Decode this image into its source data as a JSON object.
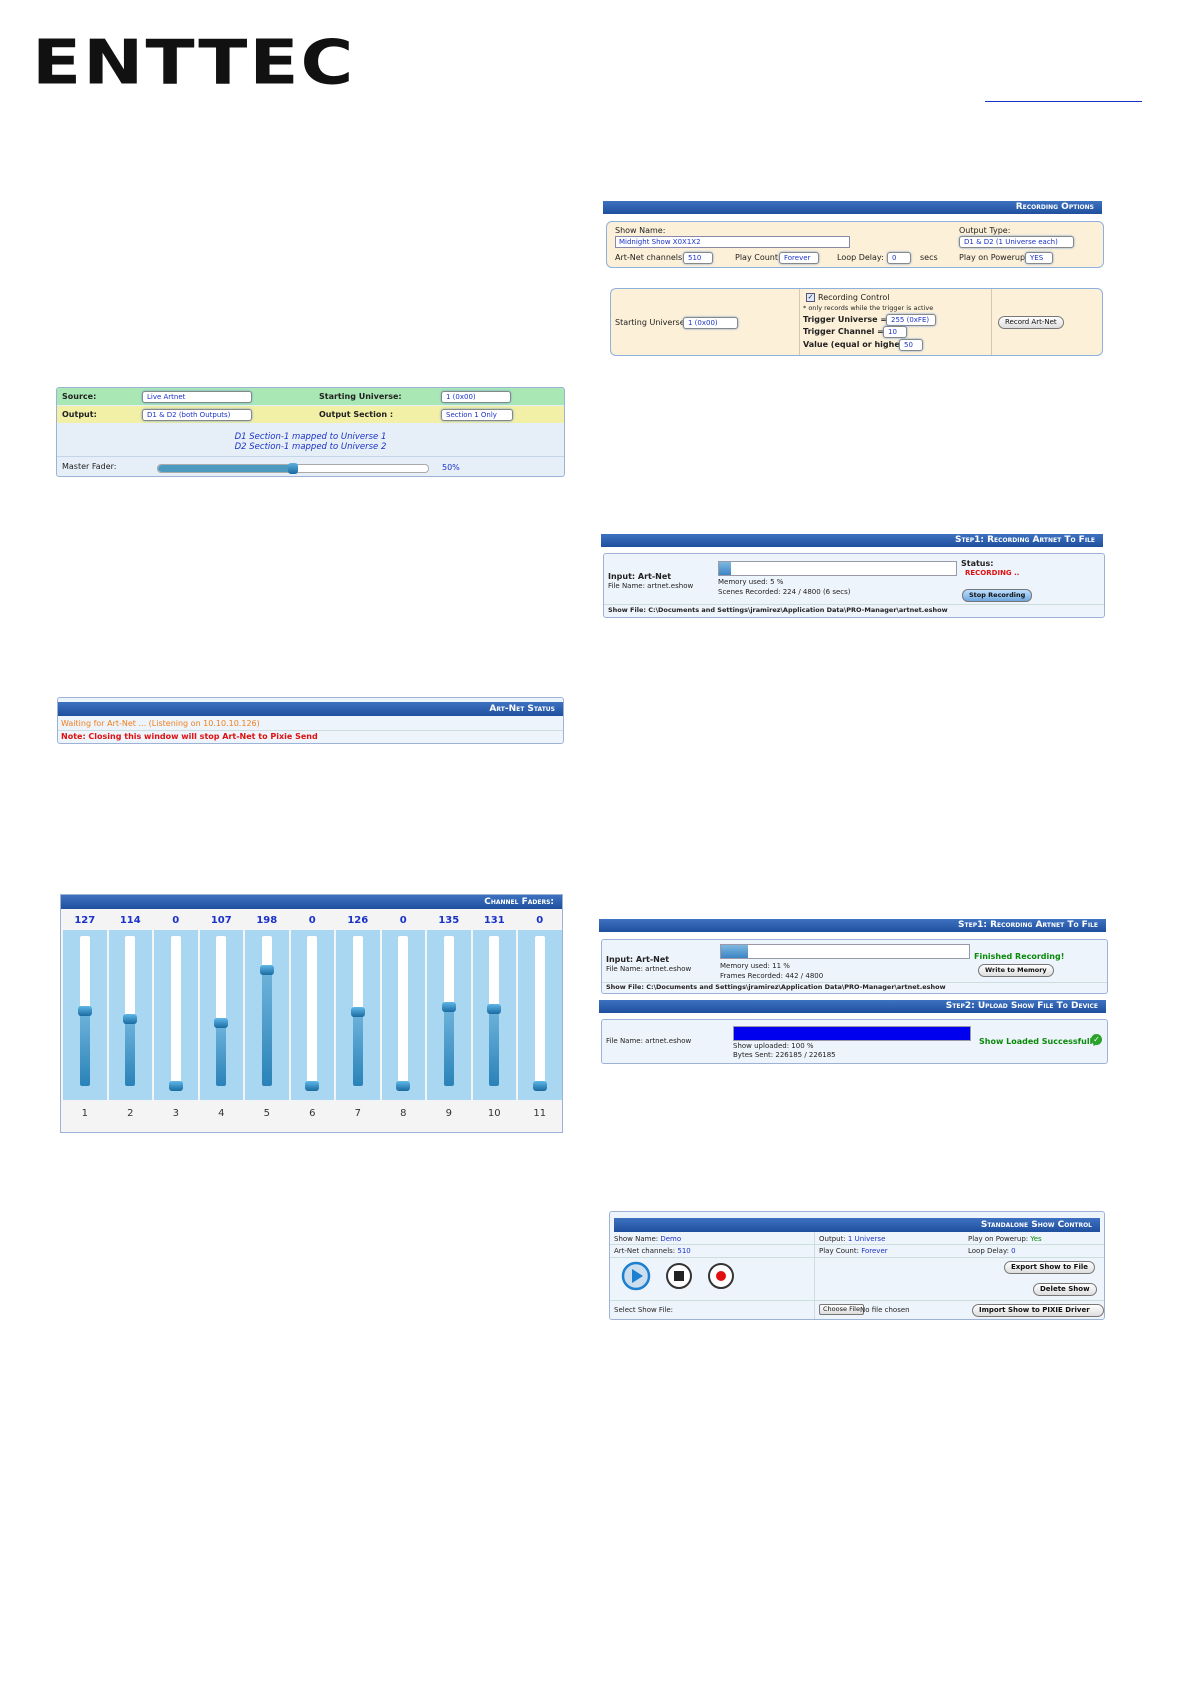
{
  "logo": "ENTTEC",
  "art_net_config": {
    "source_label": "Source:",
    "source": "Live Artnet",
    "start_universe_label": "Starting Universe:",
    "start_universe": "1 (0x00)",
    "output_label": "Output:",
    "output": "D1 & D2 (both Outputs)",
    "output_section_label": "Output Section :",
    "output_section": "Section 1 Only",
    "mapping": [
      "D1 Section-1 mapped to Universe 1",
      "D2 Section-1 mapped to Universe 2"
    ],
    "master_label": "Master Fader:",
    "master_value": 50,
    "master_value_label": "50%"
  },
  "art_net_status": {
    "title": "Art-Net Status",
    "waiting": "Waiting for Art-Net ... (Listening on 10.10.10.126)",
    "note": "Note: Closing this window will stop Art-Net to Pixie Send"
  },
  "channel_faders": {
    "title": "Channel Faders:",
    "channels": [
      "1",
      "2",
      "3",
      "4",
      "5",
      "6",
      "7",
      "8",
      "9",
      "10",
      "11"
    ],
    "values": [
      127,
      114,
      0,
      107,
      198,
      0,
      126,
      0,
      135,
      131,
      0
    ]
  },
  "recording_options": {
    "title": "Recording Options",
    "show_name_label": "Show Name:",
    "show_name": "Midnight Show X0X1X2",
    "output_type_label": "Output Type:",
    "output_type": "D1 & D2 (1 Universe each)",
    "channels_label": "Art-Net channels:",
    "channels": "510",
    "play_count_label": "Play Count:",
    "play_count": "Forever",
    "loop_delay_label": "Loop Delay:",
    "loop_delay": "0",
    "secs": "secs",
    "powerup_label": "Play on Powerup:",
    "powerup": "YES",
    "start_universe_label": "Starting Universe :",
    "start_universe": "1 (0x00)",
    "recording_control": "Recording Control",
    "note": "* only records while the trigger is active",
    "trigger_universe_label": "Trigger Universe =",
    "trigger_universe": "255 (0xFE)",
    "trigger_channel_label": "Trigger Channel =",
    "trigger_channel": "10",
    "value_label": "Value (equal or higher):",
    "value": "50",
    "button": "Record Art-Net"
  },
  "step1_recording": {
    "title": "Step1: Recording Artnet To File",
    "input": "Input: Art-Net",
    "file_name": "File Name: artnet.eshow",
    "memory": {
      "label": "Memory used:",
      "value": 5,
      "value_label": "5 %"
    },
    "scenes": "Scenes Recorded: 224 / 4800 (6 secs)",
    "status_label": "Status:",
    "status": "RECORDING ..",
    "button": "Stop Recording",
    "show_file": "Show File: C:\\Documents and Settings\\jramirez\\Application Data\\PRO-Manager\\artnet.eshow"
  },
  "step1_finished": {
    "title": "Step1: Recording Artnet To File",
    "input": "Input: Art-Net",
    "file_name": "File Name: artnet.eshow",
    "memory": {
      "label": "Memory used:",
      "value": 11,
      "value_label": "11 %"
    },
    "frames": "Frames Recorded: 442 / 4800",
    "status": "Finished Recording!",
    "button": "Write to Memory",
    "show_file": "Show File: C:\\Documents and Settings\\jramirez\\Application Data\\PRO-Manager\\artnet.eshow"
  },
  "step2_upload": {
    "title": "Step2: Upload Show File To Device",
    "file_name": "File Name: artnet.eshow",
    "uploaded": {
      "label": "Show uploaded:",
      "value": 100,
      "value_label": "100 %"
    },
    "bytes": "Bytes Sent: 226185 / 226185",
    "status": "Show Loaded Successfully"
  },
  "standalone": {
    "title": "Standalone Show Control",
    "show_name_label": "Show Name:",
    "show_name": "Demo",
    "output_label": "Output:",
    "output": "1 Universe",
    "powerup_label": "Play on Powerup:",
    "powerup": "Yes",
    "channels_label": "Art-Net channels:",
    "channels": "510",
    "play_count_label": "Play Count:",
    "play_count": "Forever",
    "loop_delay_label": "Loop Delay:",
    "loop_delay": "0",
    "export": "Export Show to File",
    "delete": "Delete Show",
    "select_label": "Select Show File:",
    "choose": "Choose File",
    "no_file": "No file chosen",
    "import": "Import Show to PIXIE Driver >>"
  }
}
